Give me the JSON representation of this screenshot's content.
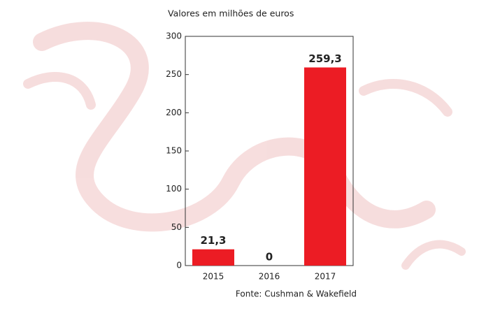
{
  "chart_data": {
    "type": "bar",
    "title": "Valores em milhões de euros",
    "source": "Fonte: Cushman & Wakefield",
    "categories": [
      "2015",
      "2016",
      "2017"
    ],
    "values": [
      21.3,
      0,
      259.3
    ],
    "value_labels": [
      "21,3",
      "0",
      "259,3"
    ],
    "color": "#ec1c24",
    "ylim": [
      0,
      300
    ],
    "yticks": [
      0,
      50,
      100,
      150,
      200,
      250,
      300
    ],
    "grid": false
  }
}
